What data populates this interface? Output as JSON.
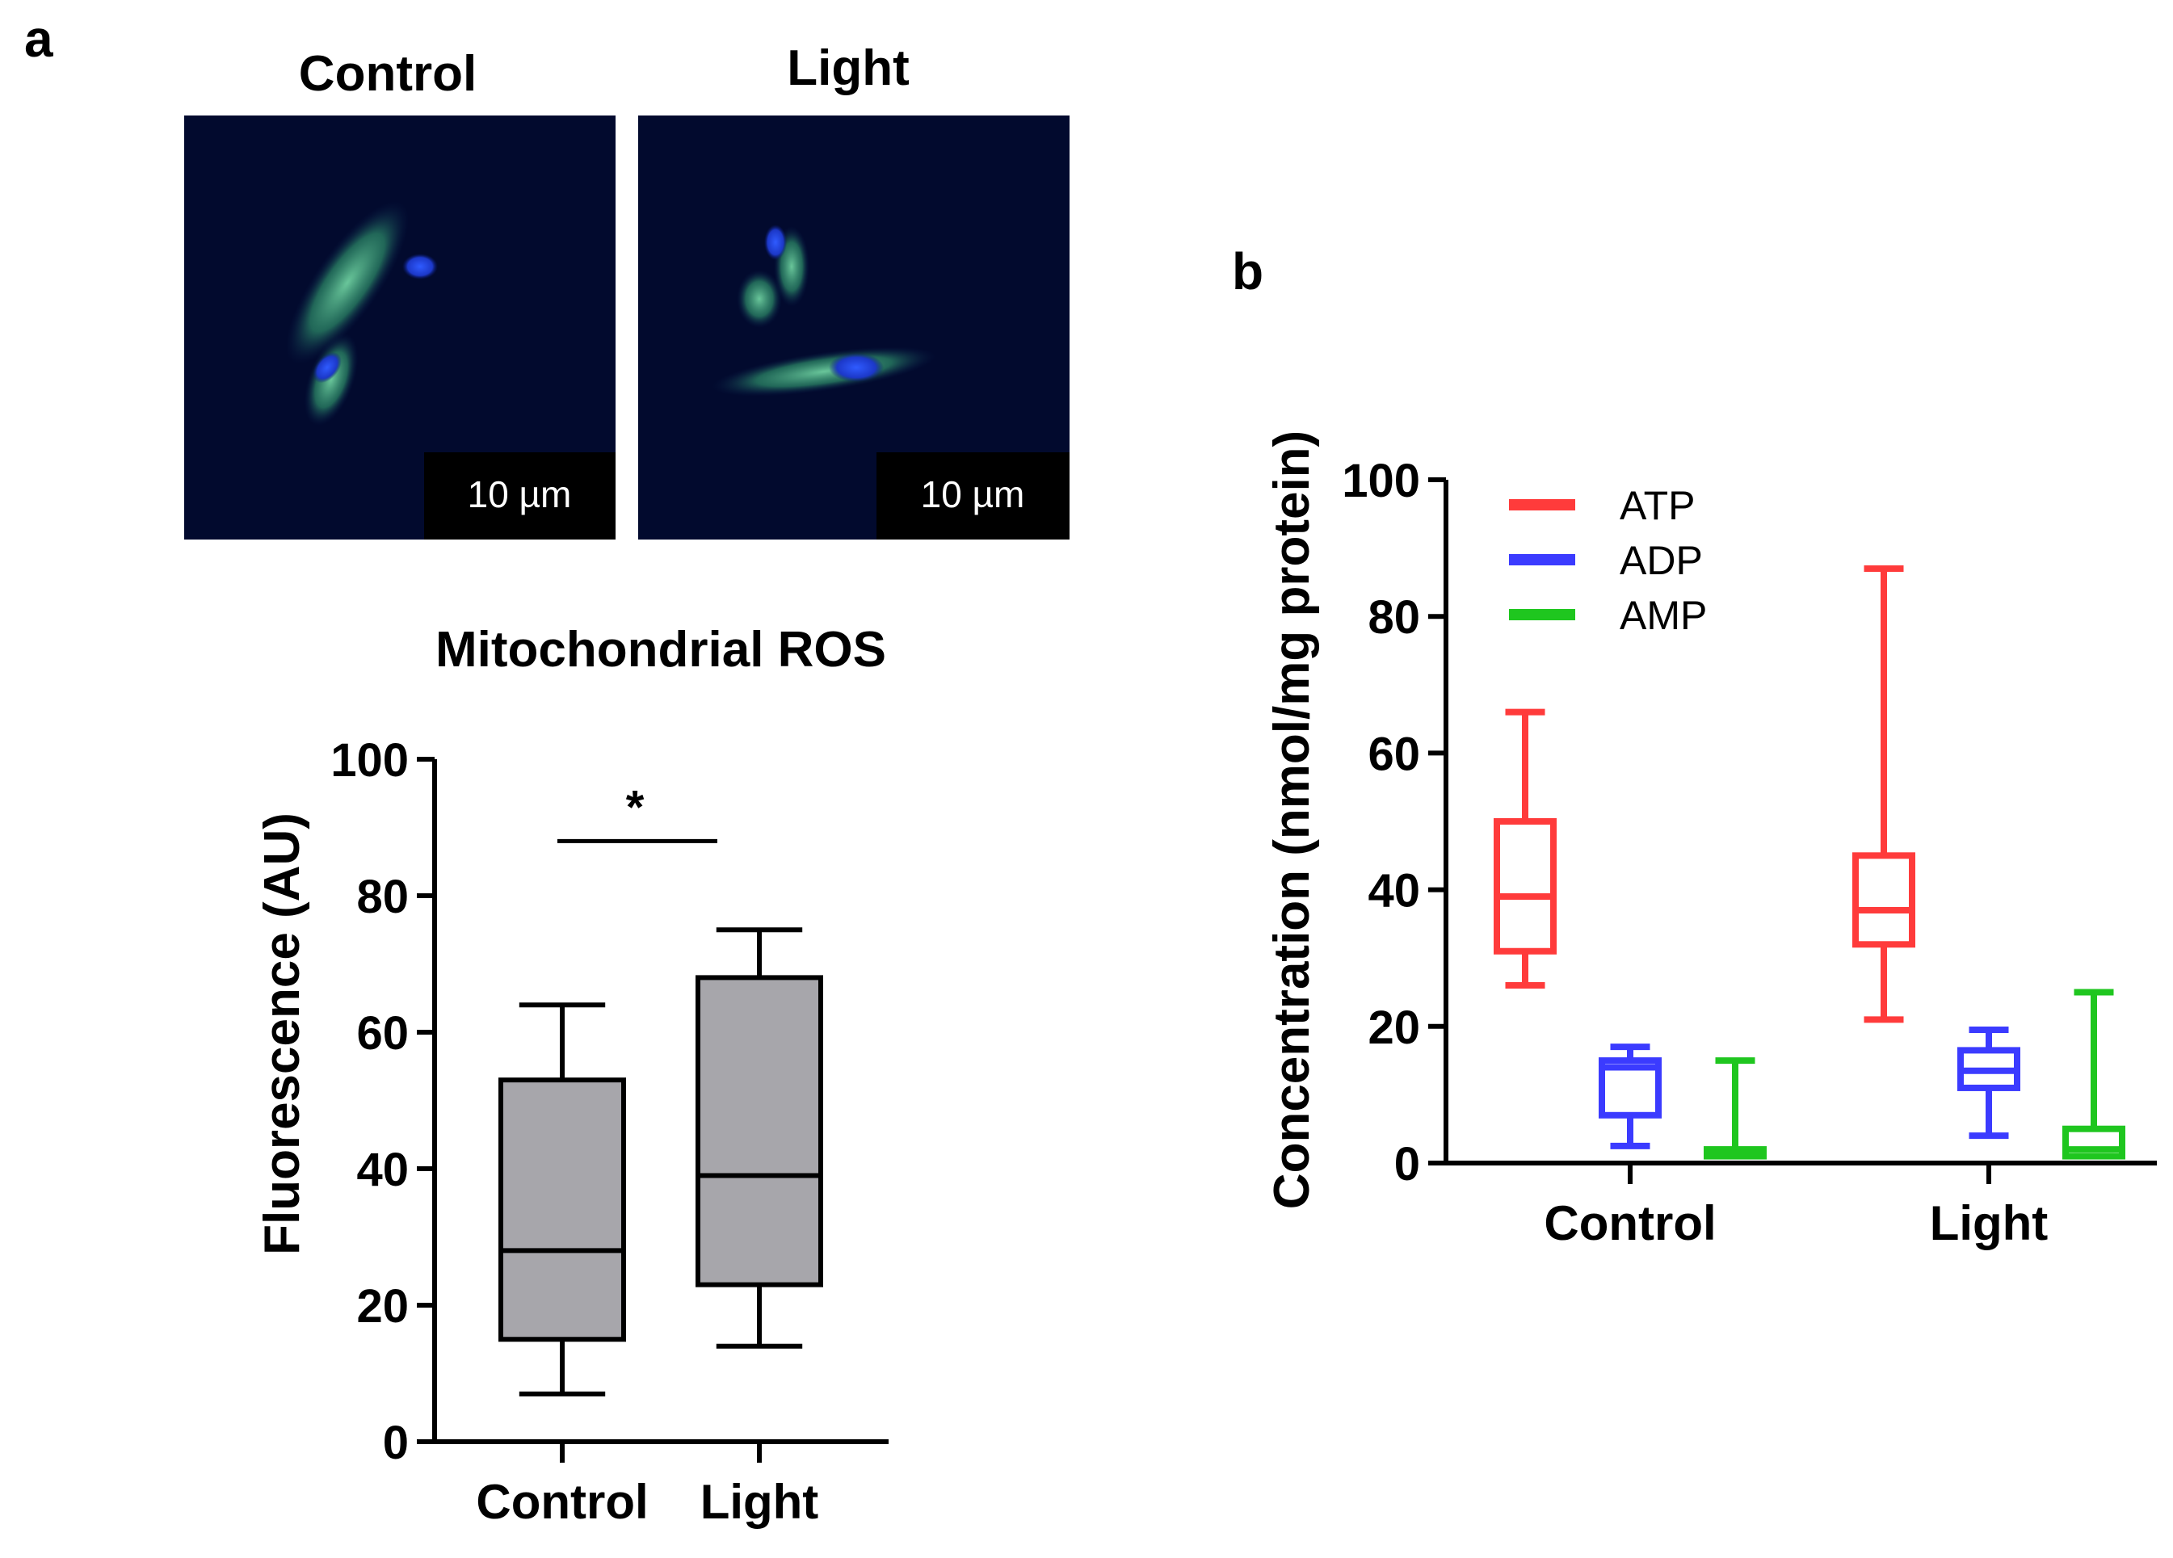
{
  "panels": {
    "a": {
      "label": "a",
      "micrographs": [
        {
          "title": "Control",
          "scale_bar": "10 µm"
        },
        {
          "title": "Light",
          "scale_bar": "10 µm"
        }
      ]
    },
    "b": {
      "label": "b"
    }
  },
  "chart_data": [
    {
      "type": "boxplot",
      "title": "Mitochondrial ROS",
      "ylabel": "Fluorescence (AU)",
      "xlabel": "",
      "ylim": [
        0,
        100
      ],
      "yticks": [
        0,
        20,
        40,
        60,
        80,
        100
      ],
      "categories": [
        "Control",
        "Light"
      ],
      "box_color": "#a7a6ab",
      "boxes": [
        {
          "category": "Control",
          "min": 7,
          "q1": 15,
          "median": 28,
          "q3": 53,
          "max": 64
        },
        {
          "category": "Light",
          "min": 14,
          "q1": 23,
          "median": 39,
          "q3": 68,
          "max": 75
        }
      ],
      "significance": {
        "between": [
          "Control",
          "Light"
        ],
        "label": "*"
      }
    },
    {
      "type": "boxplot",
      "title": "",
      "ylabel": "Concentration (nmol/mg protein)",
      "xlabel": "",
      "ylim": [
        0,
        100
      ],
      "yticks": [
        0,
        20,
        40,
        60,
        80,
        100
      ],
      "categories": [
        "Control",
        "Light"
      ],
      "legend_position": "top-left",
      "series": [
        {
          "name": "ATP",
          "color": "#ff3b3b",
          "boxes": [
            {
              "category": "Control",
              "min": 26,
              "q1": 31,
              "median": 39,
              "q3": 50,
              "max": 66
            },
            {
              "category": "Light",
              "min": 21,
              "q1": 32,
              "median": 37,
              "q3": 45,
              "max": 87
            }
          ]
        },
        {
          "name": "ADP",
          "color": "#3b3bff",
          "boxes": [
            {
              "category": "Control",
              "min": 2.5,
              "q1": 7,
              "median": 14,
              "q3": 15,
              "max": 17
            },
            {
              "category": "Light",
              "min": 4,
              "q1": 11,
              "median": 13.5,
              "q3": 16.5,
              "max": 19.5
            }
          ]
        },
        {
          "name": "AMP",
          "color": "#1fc61f",
          "boxes": [
            {
              "category": "Control",
              "min": 1,
              "q1": 1,
              "median": 1.5,
              "q3": 2,
              "max": 15
            },
            {
              "category": "Light",
              "min": 1,
              "q1": 1,
              "median": 2,
              "q3": 5,
              "max": 25
            }
          ]
        }
      ]
    }
  ]
}
